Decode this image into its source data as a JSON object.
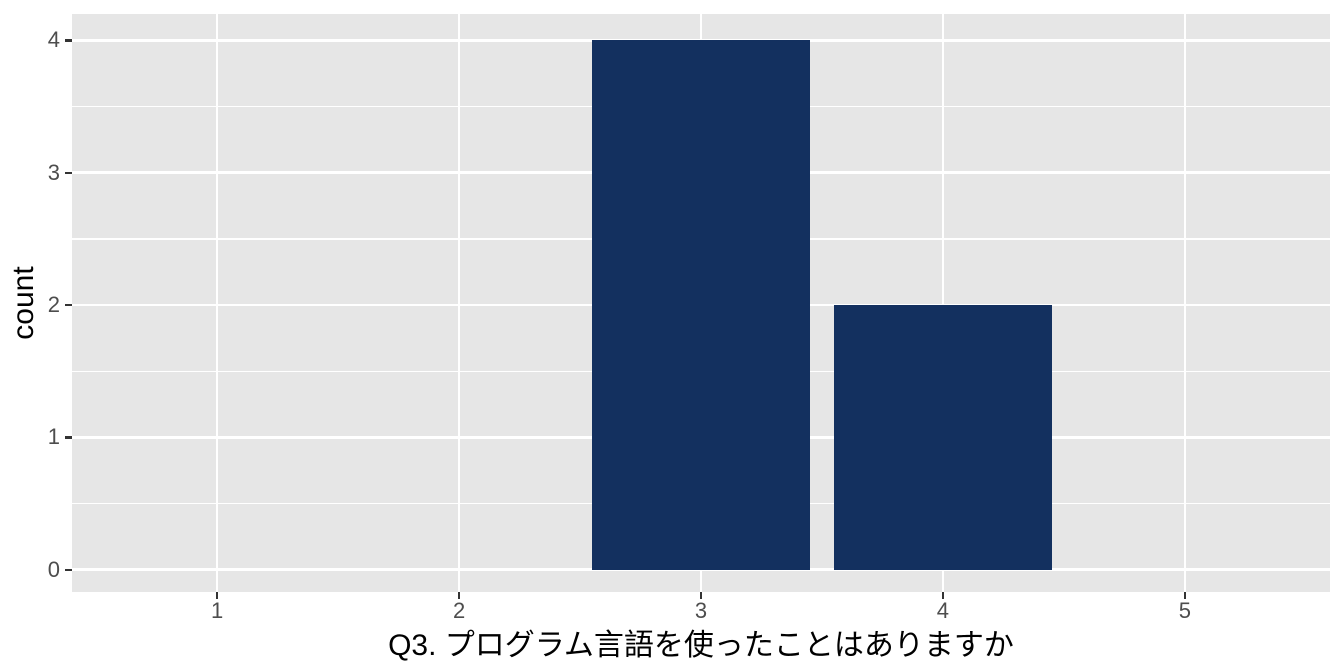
{
  "chart_data": {
    "type": "bar",
    "categories": [
      "1",
      "2",
      "3",
      "4",
      "5"
    ],
    "values": [
      0,
      0,
      4,
      2,
      0
    ],
    "title": "",
    "xlabel": "Q3. プログラム言語を使ったことはありますか",
    "ylabel": "count",
    "ylim": [
      0,
      4
    ],
    "y_major_ticks": [
      0,
      1,
      2,
      3,
      4
    ],
    "y_minor_ticks": [
      0.5,
      1.5,
      2.5,
      3.5
    ],
    "x_tick_labels": [
      "1",
      "2",
      "3",
      "4",
      "5"
    ],
    "y_tick_labels": [
      "0",
      "1",
      "2",
      "3",
      "4"
    ],
    "legend": "none",
    "grid": "white major gridlines x+y, white minor gridlines y only",
    "style": "ggplot2 theme_grey",
    "bar_width_fraction": 0.9
  },
  "style": {
    "figure_bg": "#FFFFFF",
    "panel_bg": "#E6E6E6",
    "grid_color": "#FFFFFF",
    "bar_color": "#13305F",
    "tick_mark_color": "#333333",
    "tick_label_color": "#4D4D4D",
    "axis_title_color": "#000000"
  }
}
